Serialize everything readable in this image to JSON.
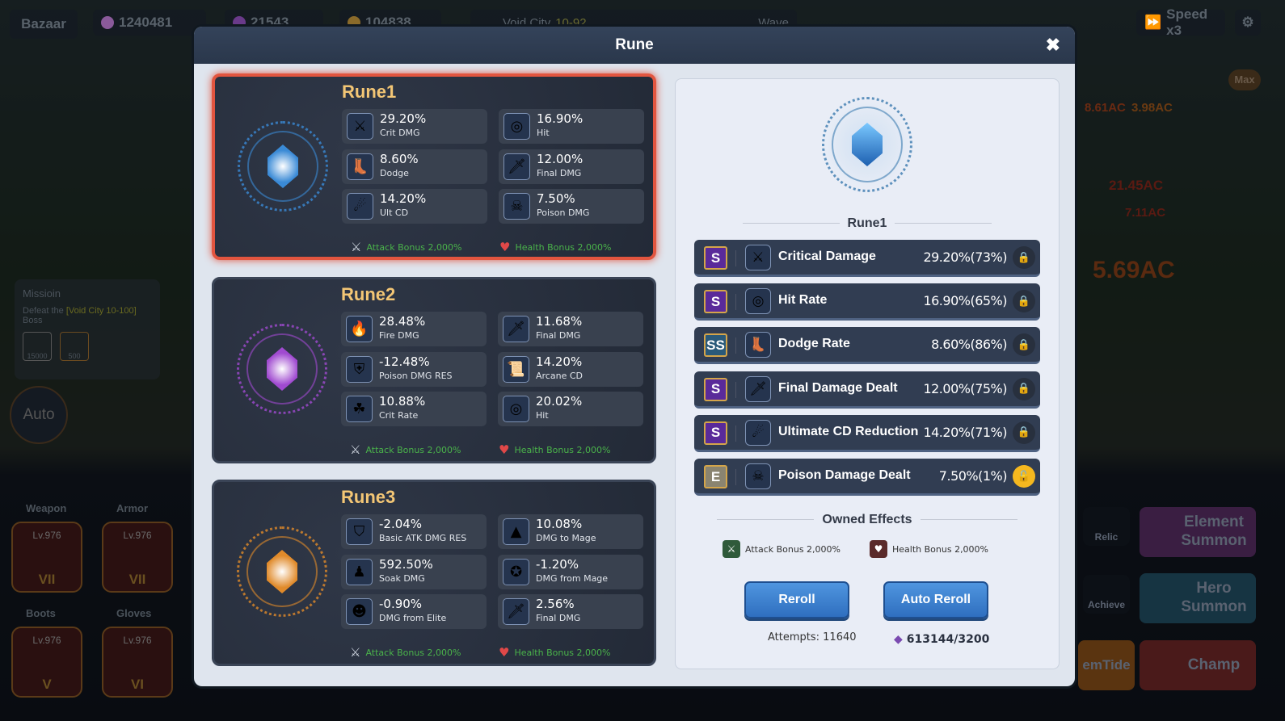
{
  "hud": {
    "bazaar": "Bazaar",
    "gems": "1240481",
    "tickets": "21543",
    "gold": "104838",
    "stage_name": "Void City",
    "stage": "10-92",
    "wave": "Wave",
    "speed": "Speed x3",
    "max": "Max"
  },
  "mission": {
    "title": "Missioin",
    "text": "Defeat the",
    "target": "[Void City 10-100]",
    "boss": "Boss",
    "reward1": "15000",
    "reward2": "500"
  },
  "auto": "Auto",
  "equipment": [
    {
      "slot": "Weapon",
      "level": "Lv.976",
      "tier": "VII"
    },
    {
      "slot": "Armor",
      "level": "Lv.976",
      "tier": "VII"
    },
    {
      "slot": "Boots",
      "level": "Lv.976",
      "tier": "V"
    },
    {
      "slot": "Gloves",
      "level": "Lv.976",
      "tier": "VI"
    }
  ],
  "right_menu": {
    "relic": "Relic",
    "achieve": "Achieve",
    "element_summon": "Element Summon",
    "hero_summon": "Hero Summon",
    "champ": "Champ",
    "tide": "emTide"
  },
  "battle_numbers": [
    "8.61AC",
    "3.98AC",
    "21.45AC",
    "7.11AC",
    "5.69AC"
  ],
  "modal": {
    "title": "Rune",
    "close": "✖"
  },
  "runes": [
    {
      "name": "Rune1",
      "selected": true,
      "color": "#3a8ad6",
      "stats": [
        {
          "value": "29.20%",
          "label": "Crit DMG",
          "icon": "crit-sword-icon"
        },
        {
          "value": "16.90%",
          "label": "Hit",
          "icon": "target-icon"
        },
        {
          "value": "8.60%",
          "label": "Dodge",
          "icon": "winged-boot-icon"
        },
        {
          "value": "12.00%",
          "label": "Final DMG",
          "icon": "final-sword-icon"
        },
        {
          "value": "14.20%",
          "label": "Ult CD",
          "icon": "fireball-icon"
        },
        {
          "value": "7.50%",
          "label": "Poison DMG",
          "icon": "skull-icon"
        }
      ],
      "attack_bonus": "Attack Bonus 2,000%",
      "health_bonus": "Health Bonus 2,000%"
    },
    {
      "name": "Rune2",
      "selected": false,
      "color": "#a04ad0",
      "stats": [
        {
          "value": "28.48%",
          "label": "Fire DMG",
          "icon": "fire-icon"
        },
        {
          "value": "11.68%",
          "label": "Final DMG",
          "icon": "final-sword-icon"
        },
        {
          "value": "-12.48%",
          "label": "Poison DMG RES",
          "icon": "poison-shield-icon"
        },
        {
          "value": "14.20%",
          "label": "Arcane CD",
          "icon": "scroll-icon"
        },
        {
          "value": "10.88%",
          "label": "Crit Rate",
          "icon": "clover-icon"
        },
        {
          "value": "20.02%",
          "label": "Hit",
          "icon": "target-icon"
        }
      ],
      "attack_bonus": "Attack Bonus 2,000%",
      "health_bonus": "Health Bonus 2,000%"
    },
    {
      "name": "Rune3",
      "selected": false,
      "color": "#e08a2a",
      "stats": [
        {
          "value": "-2.04%",
          "label": "Basic ATK DMG RES",
          "icon": "shield-icon"
        },
        {
          "value": "10.08%",
          "label": "DMG to Mage",
          "icon": "wizard-hat-icon"
        },
        {
          "value": "592.50%",
          "label": "Soak DMG",
          "icon": "water-figure-icon"
        },
        {
          "value": "-1.20%",
          "label": "DMG from Mage",
          "icon": "mage-badge-icon"
        },
        {
          "value": "-0.90%",
          "label": "DMG from Elite",
          "icon": "elite-badge-icon"
        },
        {
          "value": "2.56%",
          "label": "Final DMG",
          "icon": "final-sword-icon"
        }
      ],
      "attack_bonus": "Attack Bonus 2,000%",
      "health_bonus": "Health Bonus 2,000%"
    }
  ],
  "detail": {
    "name": "Rune1",
    "options": [
      {
        "grade": "S",
        "name": "Critical Damage",
        "value": "29.20%(73%)",
        "locked": true,
        "icon": "crit-sword-icon"
      },
      {
        "grade": "S",
        "name": "Hit Rate",
        "value": "16.90%(65%)",
        "locked": true,
        "icon": "target-icon"
      },
      {
        "grade": "SS",
        "name": "Dodge Rate",
        "value": "8.60%(86%)",
        "locked": true,
        "icon": "winged-boot-icon"
      },
      {
        "grade": "S",
        "name": "Final Damage Dealt",
        "value": "12.00%(75%)",
        "locked": true,
        "icon": "final-sword-icon"
      },
      {
        "grade": "S",
        "name": "Ultimate CD Reduction",
        "value": "14.20%(71%)",
        "locked": true,
        "icon": "fireball-icon"
      },
      {
        "grade": "E",
        "name": "Poison Damage Dealt",
        "value": "7.50%(1%)",
        "locked": false,
        "icon": "skull-icon"
      }
    ],
    "owned_title": "Owned Effects",
    "owned": [
      "Attack Bonus 2,000%",
      "Health Bonus 2,000%"
    ],
    "reroll": "Reroll",
    "auto_reroll": "Auto Reroll",
    "attempts": "Attempts: 11640",
    "currency": "613144/3200"
  },
  "colors": {
    "grade_S": "#5a2a9a",
    "grade_SS": "#2a5a7a",
    "grade_E": "#8a8470",
    "selected_border": "#e2553f",
    "bonus_green": "#4ab34a",
    "button_blue": "#3a80d0"
  }
}
